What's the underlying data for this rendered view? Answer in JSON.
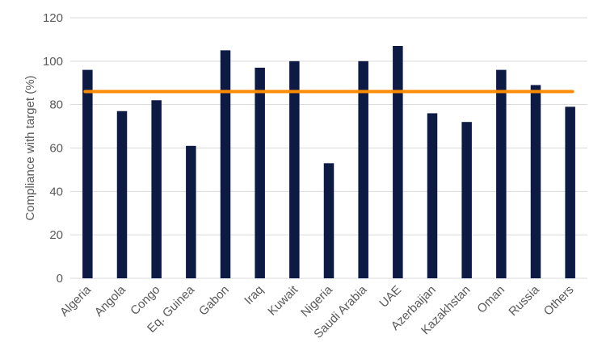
{
  "chart_data": {
    "type": "bar",
    "ylabel": "Compliance with target (%)",
    "xlabel": "",
    "ylim": [
      0,
      120
    ],
    "yticks": [
      0,
      20,
      40,
      60,
      80,
      100,
      120
    ],
    "grid": true,
    "categories": [
      "Algeria",
      "Angola",
      "Congo",
      "Eq. Guinea",
      "Gabon",
      "Iraq",
      "Kuwait",
      "Nigeria",
      "Saudi Arabia",
      "UAE",
      "Azerbaijan",
      "Kazakhstan",
      "Oman",
      "Russia",
      "Others"
    ],
    "values": [
      96,
      77,
      82,
      61,
      105,
      97,
      100,
      53,
      100,
      107,
      76,
      72,
      96,
      89,
      79
    ],
    "reference_line": {
      "value": 86,
      "color": "#FF8C00"
    },
    "bar_color": "#0C1A44",
    "grid_color": "#D9D9D9"
  }
}
